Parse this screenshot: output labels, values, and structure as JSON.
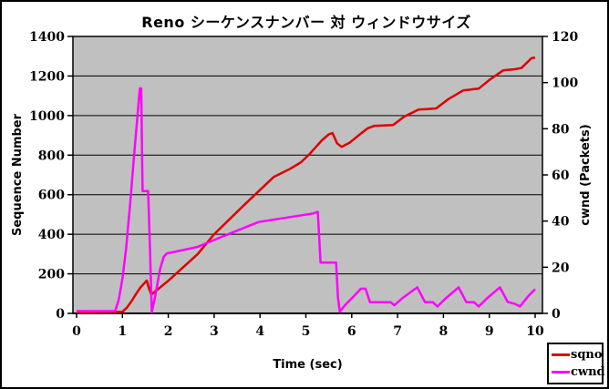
{
  "title": "Reno シーケンスナンバー 対 ウィンドウサイズ",
  "chart_data": {
    "type": "line",
    "title": "Reno シーケンスナンバー 対 ウィンドウサイズ",
    "xlabel": "Time (sec)",
    "ylabel_left": "Sequence Number",
    "ylabel_right": "cwnd (Packets)",
    "xlim": [
      0,
      10
    ],
    "ylim_left": [
      0,
      1400
    ],
    "ylim_right": [
      0,
      120
    ],
    "x_ticks": [
      0,
      1,
      2,
      3,
      4,
      5,
      6,
      7,
      8,
      9,
      10
    ],
    "y_ticks_left": [
      0,
      200,
      400,
      600,
      800,
      1000,
      1200,
      1400
    ],
    "y_ticks_right": [
      0,
      20,
      40,
      60,
      80,
      100,
      120
    ],
    "grid": "horizontal-major",
    "plot_background": "#c0c0c0",
    "grid_color": "#000000",
    "legend_position": "bottom-right",
    "series": [
      {
        "name": "sqno",
        "axis": "left",
        "color": "#dd0000",
        "points": [
          [
            0,
            5
          ],
          [
            1.0,
            8
          ],
          [
            1.1,
            30
          ],
          [
            1.2,
            62
          ],
          [
            1.3,
            100
          ],
          [
            1.4,
            133
          ],
          [
            1.5,
            158
          ],
          [
            1.53,
            166
          ],
          [
            1.58,
            125
          ],
          [
            1.63,
            95
          ],
          [
            2.0,
            165
          ],
          [
            2.64,
            300
          ],
          [
            3.0,
            400
          ],
          [
            3.64,
            545
          ],
          [
            4.3,
            690
          ],
          [
            4.65,
            730
          ],
          [
            4.9,
            765
          ],
          [
            5.1,
            810
          ],
          [
            5.35,
            875
          ],
          [
            5.5,
            905
          ],
          [
            5.58,
            912
          ],
          [
            5.68,
            860
          ],
          [
            5.78,
            842
          ],
          [
            5.95,
            862
          ],
          [
            6.15,
            900
          ],
          [
            6.35,
            936
          ],
          [
            6.5,
            948
          ],
          [
            6.9,
            952
          ],
          [
            7.15,
            995
          ],
          [
            7.46,
            1030
          ],
          [
            7.65,
            1033
          ],
          [
            7.84,
            1036
          ],
          [
            8.1,
            1082
          ],
          [
            8.43,
            1127
          ],
          [
            8.6,
            1132
          ],
          [
            8.77,
            1136
          ],
          [
            9.0,
            1180
          ],
          [
            9.3,
            1228
          ],
          [
            9.55,
            1234
          ],
          [
            9.7,
            1240
          ],
          [
            9.92,
            1290
          ],
          [
            10,
            1293
          ]
        ]
      },
      {
        "name": "cwnd",
        "axis": "right",
        "color": "#ff00ff",
        "points": [
          [
            0,
            1
          ],
          [
            0.84,
            1
          ],
          [
            0.92,
            6
          ],
          [
            1.0,
            15
          ],
          [
            1.08,
            28
          ],
          [
            1.17,
            48
          ],
          [
            1.26,
            70
          ],
          [
            1.33,
            86
          ],
          [
            1.38,
            97.5
          ],
          [
            1.41,
            97.5
          ],
          [
            1.44,
            53
          ],
          [
            1.56,
            53
          ],
          [
            1.6,
            28
          ],
          [
            1.64,
            0.5
          ],
          [
            1.72,
            8
          ],
          [
            1.82,
            19
          ],
          [
            1.9,
            24.5
          ],
          [
            1.97,
            26
          ],
          [
            2.1,
            26.5
          ],
          [
            2.64,
            28.8
          ],
          [
            3.12,
            32.8
          ],
          [
            3.97,
            39.6
          ],
          [
            5.16,
            43.3
          ],
          [
            5.26,
            44
          ],
          [
            5.32,
            22
          ],
          [
            5.66,
            22
          ],
          [
            5.7,
            7
          ],
          [
            5.74,
            0.7
          ],
          [
            5.85,
            3.5
          ],
          [
            6.05,
            7.5
          ],
          [
            6.2,
            10.7
          ],
          [
            6.3,
            10.7
          ],
          [
            6.4,
            4.8
          ],
          [
            6.85,
            4.8
          ],
          [
            6.93,
            3.5
          ],
          [
            7.1,
            6.5
          ],
          [
            7.43,
            11.3
          ],
          [
            7.6,
            4.8
          ],
          [
            7.77,
            4.8
          ],
          [
            7.87,
            3.0
          ],
          [
            8.05,
            6.5
          ],
          [
            8.33,
            11.3
          ],
          [
            8.5,
            4.8
          ],
          [
            8.67,
            4.8
          ],
          [
            8.77,
            3.0
          ],
          [
            8.95,
            6.5
          ],
          [
            9.23,
            11.3
          ],
          [
            9.4,
            5.0
          ],
          [
            9.55,
            4.2
          ],
          [
            9.67,
            3.0
          ],
          [
            9.85,
            7.5
          ],
          [
            10,
            10.5
          ]
        ]
      }
    ]
  }
}
